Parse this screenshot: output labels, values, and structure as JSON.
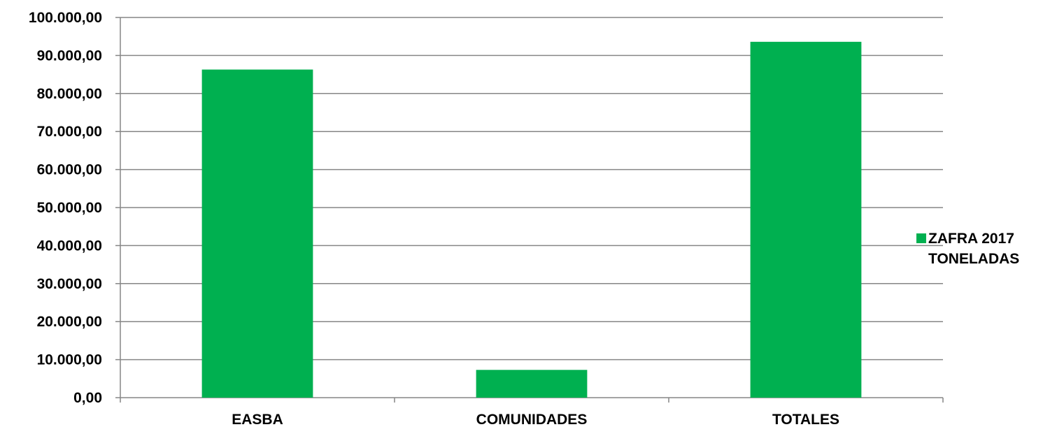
{
  "chart_data": {
    "type": "bar",
    "title": "",
    "xlabel": "",
    "ylabel": "",
    "categories": [
      "EASBA",
      "COMUNIDADES",
      "TOTALES"
    ],
    "series": [
      {
        "name": "ZAFRA 2017 TONELADAS",
        "name_lines": [
          "ZAFRA 2017",
          "TONELADAS"
        ],
        "values": [
          86300,
          7300,
          93600
        ],
        "color": "#00b050"
      }
    ],
    "ylim": [
      0,
      100000
    ],
    "yticks": [
      0,
      10000,
      20000,
      30000,
      40000,
      50000,
      60000,
      70000,
      80000,
      90000,
      100000
    ],
    "ytick_labels": [
      "0,00",
      "10.000,00",
      "20.000,00",
      "30.000,00",
      "40.000,00",
      "50.000,00",
      "60.000,00",
      "70.000,00",
      "80.000,00",
      "90.000,00",
      "100.000,00"
    ],
    "grid": true,
    "legend_position": "right",
    "colors": {
      "bar": "#00b050",
      "grid": "#868686",
      "axis": "#868686",
      "text": "#000000"
    }
  }
}
